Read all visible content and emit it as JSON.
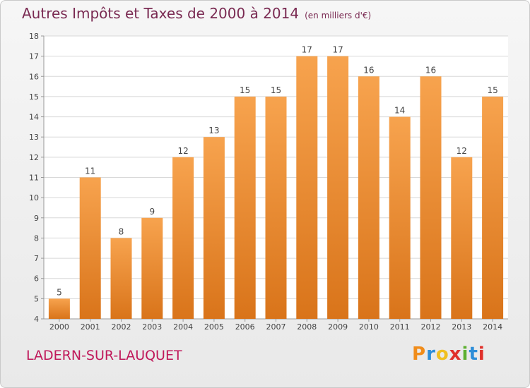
{
  "header": {
    "title": "Autres Impôts et Taxes de 2000 à 2014",
    "unit": "(en milliers d'€)"
  },
  "footer": {
    "commune": "LADERN-SUR-LAUQUET",
    "logo_text": "Proxiti"
  },
  "colors": {
    "bar_light": "#f7a34e",
    "bar_dark": "#d9741a",
    "title": "#7a2a52",
    "commune": "#c0185a"
  },
  "chart_data": {
    "type": "bar",
    "title": "Autres Impôts et Taxes de 2000 à 2014",
    "subtitle": "(en milliers d'€)",
    "categories": [
      "2000",
      "2001",
      "2002",
      "2003",
      "2004",
      "2005",
      "2006",
      "2007",
      "2008",
      "2009",
      "2010",
      "2011",
      "2012",
      "2013",
      "2014"
    ],
    "values": [
      5,
      11,
      8,
      9,
      12,
      13,
      15,
      15,
      17,
      17,
      16,
      14,
      16,
      12,
      15
    ],
    "ylim": [
      4,
      18
    ],
    "yticks": [
      4,
      5,
      6,
      7,
      8,
      9,
      10,
      11,
      12,
      13,
      14,
      15,
      16,
      17,
      18
    ],
    "grid": true,
    "legend": "none"
  }
}
